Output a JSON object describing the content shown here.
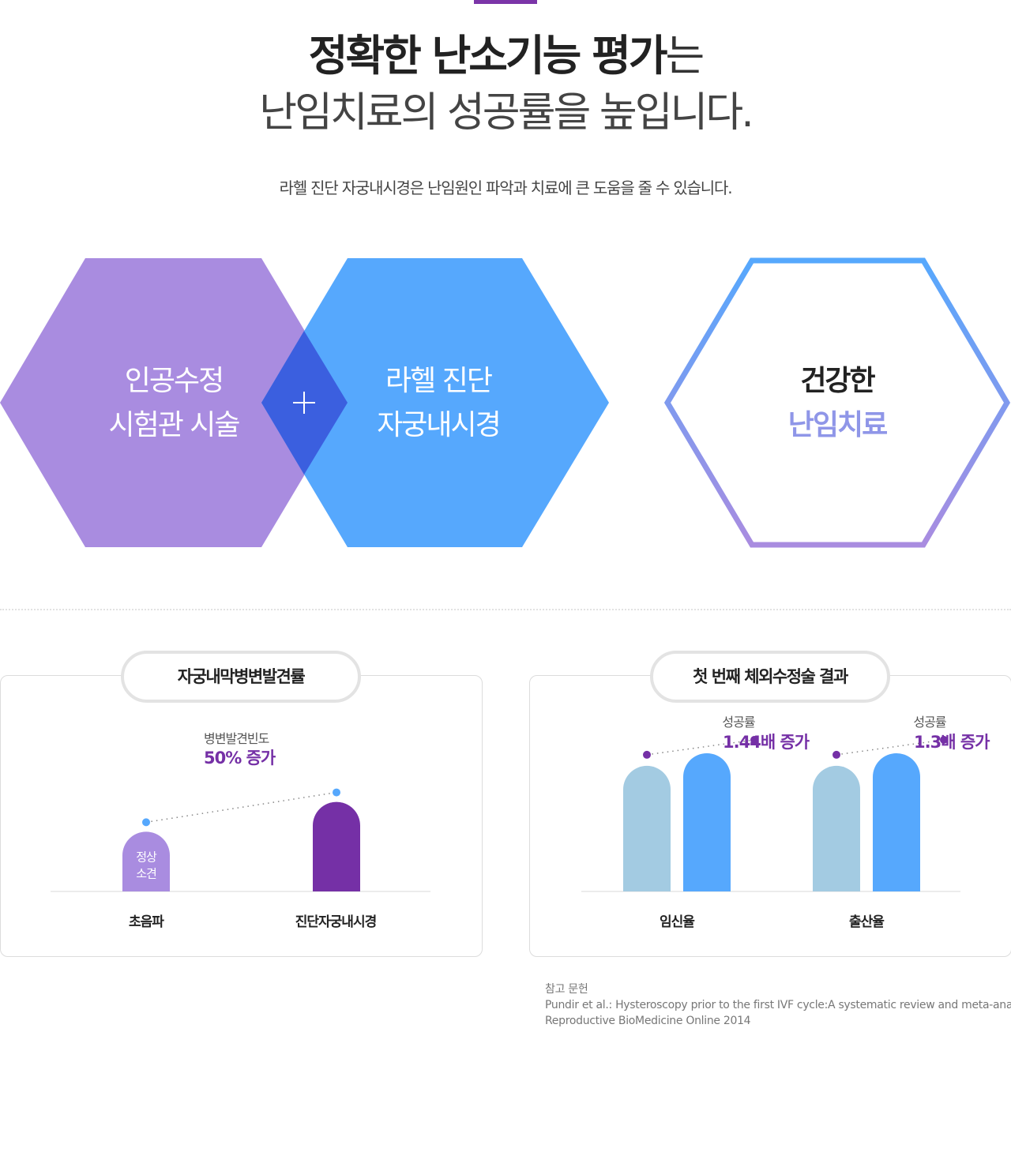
{
  "header": {
    "title_bold": "정확한 난소기능 평가",
    "title_light": "는",
    "title_line2": "난임치료의 성공률을 높입니다.",
    "subtitle": "라헬 진단 자궁내시경은 난임원인 파악과 치료에 큰 도움을 줄 수 있습니다."
  },
  "hexagons": {
    "left": {
      "line1": "인공수정",
      "line2": "시험관 시술",
      "color": "#a98ce0"
    },
    "middle": {
      "line1": "라헬 진단",
      "line2": "자궁내시경",
      "color": "#56a8fd"
    },
    "overlap_color": "#3b5fdf",
    "plus": "+",
    "result": {
      "line1": "건강한",
      "line2": "난임치료"
    }
  },
  "chart_data": [
    {
      "type": "bar",
      "title": "자궁내막병변발견률",
      "categories": [
        "초음파",
        "진단자궁내시경"
      ],
      "values": [
        1.0,
        1.5
      ],
      "bar_colors": [
        "#a98ce0",
        "#7530a6"
      ],
      "bar_inner_label": {
        "line1": "정상",
        "line2": "소견"
      },
      "annotation": {
        "label": "병변발견빈도",
        "value": "50% 증가"
      },
      "ylim": [
        0,
        2.05
      ]
    },
    {
      "type": "bar",
      "title": "첫 번째 체외수정술 결과",
      "categories": [
        "임신율",
        "출산율"
      ],
      "series": [
        {
          "values": [
            1.0,
            1.0
          ],
          "color": "#a3cbe2"
        },
        {
          "values": [
            1.44,
            1.3
          ],
          "color": "#56a8fd"
        }
      ],
      "display_max": 1.1,
      "annotations": [
        {
          "label": "성공률",
          "value": "1.44배 증가"
        },
        {
          "label": "성공률",
          "value": "1.3배 증가"
        }
      ]
    }
  ],
  "reference": {
    "heading": "참고 문헌",
    "line1": "Pundir et al.: Hysteroscopy prior to the first IVF cycle:A systematic review and meta-analysis.",
    "line2": "Reproductive BioMedicine Online 2014"
  },
  "colors": {
    "accent": "#7530a6",
    "top_bar": "#7b35a8",
    "dot_blue": "#56a8fd"
  }
}
